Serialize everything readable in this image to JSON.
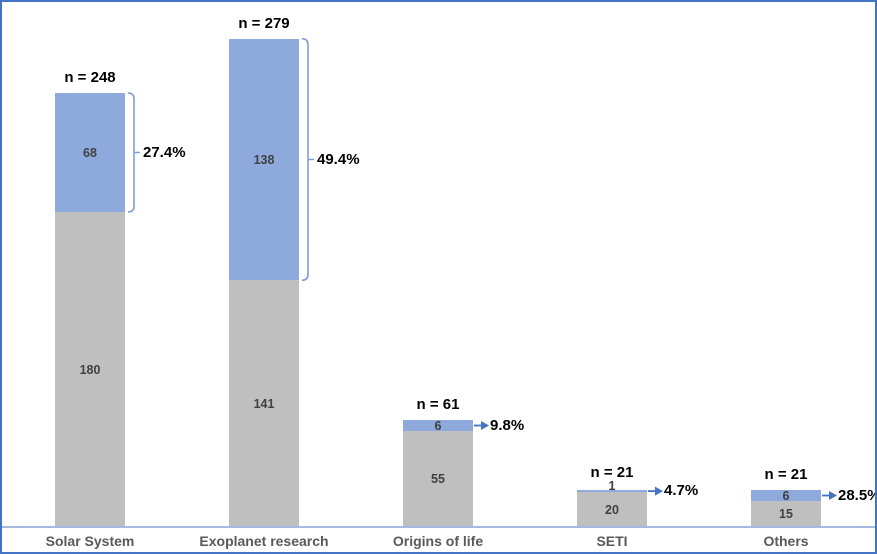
{
  "chart_data": {
    "type": "bar",
    "stacked": true,
    "orientation": "vertical",
    "title": "",
    "xlabel": "",
    "ylabel": "",
    "legend": "none",
    "gridlines": false,
    "y_axis_visible": false,
    "categories": [
      "Solar System",
      "Exoplanet research",
      "Origins of life",
      "SETI",
      "Others"
    ],
    "series": [
      {
        "name": "lower-segment",
        "color": "#BFBFBF",
        "values": [
          180,
          141,
          55,
          20,
          15
        ]
      },
      {
        "name": "upper-segment",
        "color": "#8EA9DB",
        "values": [
          68,
          138,
          6,
          1,
          6
        ]
      }
    ],
    "totals": [
      248,
      279,
      61,
      21,
      21
    ],
    "total_labels": [
      "n = 248",
      "n = 279",
      "n = 61",
      "n = 21",
      "n = 21"
    ],
    "percent_labels": [
      "27.4%",
      "49.4%",
      "9.8%",
      "4.7%",
      "28.5%"
    ],
    "percent_annotation_styles": [
      "bracket",
      "bracket",
      "arrow",
      "arrow",
      "arrow"
    ],
    "colors": {
      "upper_fill": "#8EA9DB",
      "lower_fill": "#BFBFBF",
      "bracket_stroke": "#7D9CD7",
      "arrow_stroke": "#4472C4",
      "axis_line": "#A6B9E1",
      "frame_border": "#4472C4",
      "segment_label_text": "#404040",
      "category_label_text": "#595959",
      "annotation_text": "#000000"
    }
  }
}
